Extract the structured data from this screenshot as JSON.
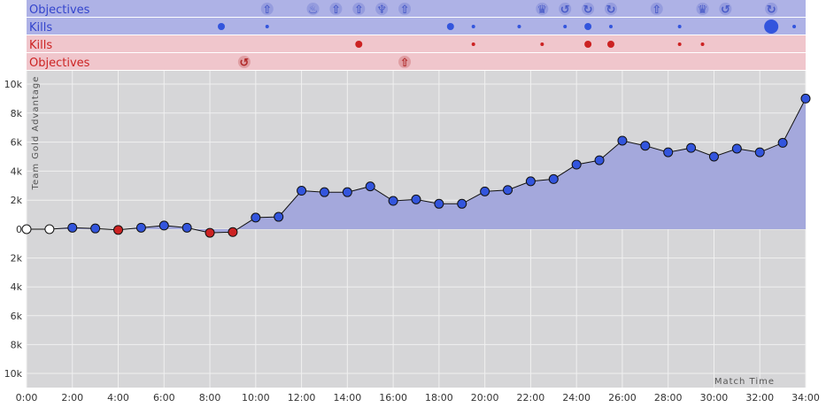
{
  "colors": {
    "blue_band": "#aeb2e6",
    "red_band": "#f0c6cc",
    "blue_text": "#3344cc",
    "red_text": "#cc2222",
    "blue_point": "#3355dd",
    "red_point": "#cc2222",
    "plot_bg": "#d6d6d8",
    "area_fill": "#a4a8dc",
    "grid": "#f0f0f0",
    "icon_blue": "#4a5cc8",
    "icon_red": "#b02828"
  },
  "timeline": {
    "rows": [
      {
        "label": "Objectives",
        "team": "blue",
        "kind": "objectives",
        "events": [
          {
            "t": 10.5,
            "icon": "tower"
          },
          {
            "t": 12.5,
            "icon": "dragon"
          },
          {
            "t": 13.5,
            "icon": "tower"
          },
          {
            "t": 14.5,
            "icon": "tower"
          },
          {
            "t": 15.5,
            "icon": "baron"
          },
          {
            "t": 16.5,
            "icon": "tower"
          },
          {
            "t": 22.5,
            "icon": "inhibitor"
          },
          {
            "t": 23.5,
            "icon": "herald"
          },
          {
            "t": 24.5,
            "icon": "respawn"
          },
          {
            "t": 25.5,
            "icon": "respawn"
          },
          {
            "t": 27.5,
            "icon": "tower"
          },
          {
            "t": 29.5,
            "icon": "inhibitor"
          },
          {
            "t": 30.5,
            "icon": "herald"
          },
          {
            "t": 32.5,
            "icon": "respawn"
          }
        ]
      },
      {
        "label": "Kills",
        "team": "blue",
        "kind": "kills",
        "events": [
          {
            "t": 8.5,
            "size": 2
          },
          {
            "t": 10.5,
            "size": 1
          },
          {
            "t": 18.5,
            "size": 2
          },
          {
            "t": 19.5,
            "size": 1
          },
          {
            "t": 21.5,
            "size": 1
          },
          {
            "t": 23.5,
            "size": 1
          },
          {
            "t": 24.5,
            "size": 2
          },
          {
            "t": 25.5,
            "size": 1
          },
          {
            "t": 28.5,
            "size": 1
          },
          {
            "t": 32.5,
            "size": 4
          },
          {
            "t": 33.5,
            "size": 1
          }
        ]
      },
      {
        "label": "Kills",
        "team": "red",
        "kind": "kills",
        "events": [
          {
            "t": 14.5,
            "size": 2
          },
          {
            "t": 19.5,
            "size": 1
          },
          {
            "t": 22.5,
            "size": 1
          },
          {
            "t": 24.5,
            "size": 2
          },
          {
            "t": 25.5,
            "size": 2
          },
          {
            "t": 28.5,
            "size": 1
          },
          {
            "t": 29.5,
            "size": 1
          }
        ]
      },
      {
        "label": "Objectives",
        "team": "red",
        "kind": "objectives",
        "events": [
          {
            "t": 9.5,
            "icon": "herald"
          },
          {
            "t": 16.5,
            "icon": "tower"
          }
        ]
      }
    ]
  },
  "chart_data": {
    "type": "line",
    "ylabel": "Team Gold Advantage",
    "xlabel": "Match Time",
    "xlim": [
      0,
      34
    ],
    "ylim": [
      -10000,
      10000
    ],
    "x_ticks": [
      {
        "v": 0,
        "label": "0:00"
      },
      {
        "v": 2,
        "label": "2:00"
      },
      {
        "v": 4,
        "label": "4:00"
      },
      {
        "v": 6,
        "label": "6:00"
      },
      {
        "v": 8,
        "label": "8:00"
      },
      {
        "v": 10,
        "label": "10:00"
      },
      {
        "v": 12,
        "label": "12:00"
      },
      {
        "v": 14,
        "label": "14:00"
      },
      {
        "v": 16,
        "label": "16:00"
      },
      {
        "v": 18,
        "label": "18:00"
      },
      {
        "v": 20,
        "label": "20:00"
      },
      {
        "v": 22,
        "label": "22:00"
      },
      {
        "v": 24,
        "label": "24:00"
      },
      {
        "v": 26,
        "label": "26:00"
      },
      {
        "v": 28,
        "label": "28:00"
      },
      {
        "v": 30,
        "label": "30:00"
      },
      {
        "v": 32,
        "label": "32:00"
      },
      {
        "v": 34,
        "label": "34:00"
      }
    ],
    "y_ticks": [
      {
        "v": 10000,
        "label": "10k"
      },
      {
        "v": 8000,
        "label": "8k"
      },
      {
        "v": 6000,
        "label": "6k"
      },
      {
        "v": 4000,
        "label": "4k"
      },
      {
        "v": 2000,
        "label": "2k"
      },
      {
        "v": 0,
        "label": "0"
      },
      {
        "v": -2000,
        "label": "2k"
      },
      {
        "v": -4000,
        "label": "4k"
      },
      {
        "v": -6000,
        "label": "6k"
      },
      {
        "v": -8000,
        "label": "8k"
      },
      {
        "v": -10000,
        "label": "10k"
      }
    ],
    "series": [
      {
        "x": [
          0,
          1,
          2,
          3,
          4,
          5,
          6,
          7,
          8,
          9,
          10,
          11,
          12,
          13,
          14,
          15,
          16,
          17,
          18,
          19,
          20,
          21,
          22,
          23,
          24,
          25,
          26,
          27,
          28,
          29,
          30,
          31,
          32,
          33,
          34
        ],
        "values": [
          0,
          0,
          100,
          50,
          -50,
          100,
          250,
          100,
          -250,
          -200,
          800,
          850,
          2650,
          2550,
          2550,
          2950,
          1950,
          2050,
          1750,
          1750,
          2600,
          2700,
          3300,
          3450,
          4450,
          4750,
          6100,
          5750,
          5300,
          5600,
          5000,
          5550,
          5300,
          5950,
          9000
        ]
      }
    ],
    "grid": true
  }
}
